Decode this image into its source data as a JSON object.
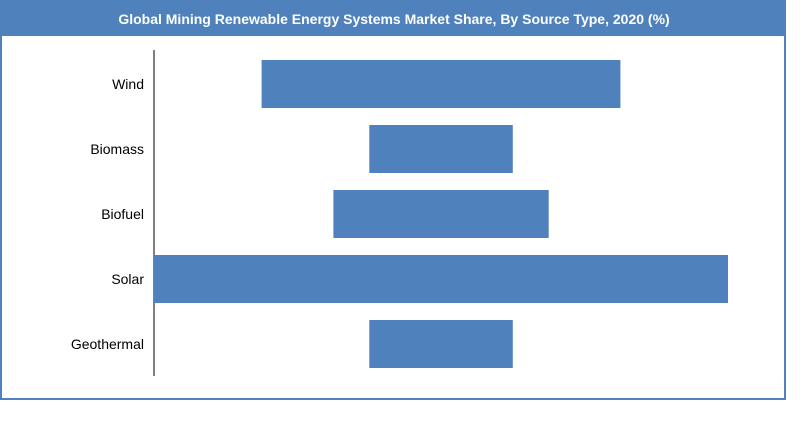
{
  "chart_data": {
    "type": "bar",
    "orientation": "horizontal",
    "title": "Global Mining Renewable Energy Systems Market  Share, By Source Type, 2020 (%)",
    "categories": [
      "Wind",
      "Biomass",
      "Biofuel",
      "Solar",
      "Geothermal"
    ],
    "values": [
      20,
      8,
      12,
      32,
      8
    ],
    "xlim": [
      0,
      35
    ],
    "grid": false,
    "legend": "none",
    "bar_color": "#4f81bd",
    "title_background": "#4f81bd",
    "title_color": "#ffffff"
  }
}
